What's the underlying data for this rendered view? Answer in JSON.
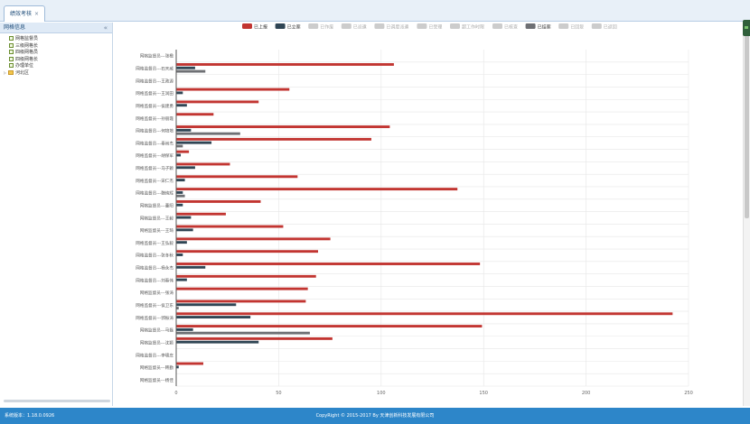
{
  "tabbar": {
    "tab_label": "绩效考核",
    "close_glyph": "×"
  },
  "sidebar": {
    "title": "网格信息",
    "collapse_glyph": "«",
    "items": [
      {
        "label": "网格监督员",
        "level": 1,
        "kind": "leaf"
      },
      {
        "label": "三级网格长",
        "level": 1,
        "kind": "leaf"
      },
      {
        "label": "四级网格员",
        "level": 1,
        "kind": "leaf"
      },
      {
        "label": "四级网格长",
        "level": 1,
        "kind": "leaf"
      },
      {
        "label": "办理单位",
        "level": 1,
        "kind": "leaf"
      },
      {
        "label": "河北区",
        "level": 0,
        "kind": "folder",
        "toggle": "▷"
      }
    ]
  },
  "footer": {
    "version": "系统版本：1.18.0.0926",
    "copyright": "CopyRight © 2015-2017 By 天津创新科技发展有限公司"
  },
  "colors": {
    "reported": "#c23531",
    "filed": "#2f4554",
    "inactive": "#cccccc",
    "closed": "#6e7074",
    "grid": "#e6e6e6",
    "footer_bg": "#2d86c9"
  },
  "chart_data": {
    "type": "bar",
    "orientation": "horizontal",
    "title": "",
    "xlim": [
      0,
      250
    ],
    "x_ticks": [
      0,
      50,
      100,
      150,
      200,
      250
    ],
    "grid": true,
    "legend_position": "top-center",
    "legend": [
      {
        "name": "已上报",
        "color": "#c23531",
        "active": true
      },
      {
        "name": "已立案",
        "color": "#2f4554",
        "active": true
      },
      {
        "name": "已作废",
        "color": "#cccccc",
        "active": false
      },
      {
        "name": "已派遣",
        "color": "#cccccc",
        "active": false
      },
      {
        "name": "已调度派遣",
        "color": "#cccccc",
        "active": false
      },
      {
        "name": "已受理",
        "color": "#cccccc",
        "active": false
      },
      {
        "name": "超工作时限",
        "color": "#cccccc",
        "active": false
      },
      {
        "name": "已核查",
        "color": "#cccccc",
        "active": false
      },
      {
        "name": "已结案",
        "color": "#6e7074",
        "active": true
      },
      {
        "name": "已回复",
        "color": "#cccccc",
        "active": false
      },
      {
        "name": "已返回",
        "color": "#cccccc",
        "active": false
      }
    ],
    "categories": [
      "网格监督员---张楹",
      "网格监督员---石天威",
      "网格监督员---王政源",
      "网格监督员---王润田",
      "网格监督员---侯建勇",
      "网格监督员---孙丽霞",
      "网格监督员---何培培",
      "网格监督员---秦尚杰",
      "网格监督员---胡保军",
      "网格监督员---马子颖",
      "网格监督员---宋仁杰",
      "网格监督员---魏纯辉",
      "网格监督员---董阳",
      "网格监督员---王毅",
      "网格监督员---王琦",
      "网格监督员---王弘毅",
      "网格监督员---张冬秋",
      "网格监督员---杨永杰",
      "网格监督员---刘春伟",
      "网格监督员---张涛",
      "网格监督员---侯卫东",
      "网格监督员---郭振涛",
      "网格监督员---马磊",
      "网格监督员---沈颖",
      "网格监督员---李啸庄",
      "网格监督员---韩勤",
      "网格监督员---杨佳"
    ],
    "series": [
      {
        "name": "已上报",
        "values": [
          0,
          106,
          0,
          55,
          40,
          18,
          104,
          95,
          6,
          26,
          59,
          137,
          41,
          24,
          52,
          75,
          69,
          148,
          68,
          64,
          63,
          242,
          149,
          76,
          0,
          13,
          0
        ]
      },
      {
        "name": "已立案",
        "values": [
          0,
          9,
          0,
          3,
          5,
          0,
          7,
          17,
          2,
          9,
          4,
          3,
          3,
          7,
          8,
          5,
          3,
          14,
          5,
          0,
          29,
          36,
          8,
          40,
          0,
          1,
          0
        ]
      },
      {
        "name": "已结案",
        "values": [
          0,
          14,
          0,
          0,
          0,
          0,
          31,
          3,
          0,
          0,
          0,
          4,
          0,
          0,
          0,
          0,
          0,
          0,
          0,
          0,
          1,
          0,
          65,
          0,
          0,
          0,
          0
        ]
      }
    ]
  }
}
